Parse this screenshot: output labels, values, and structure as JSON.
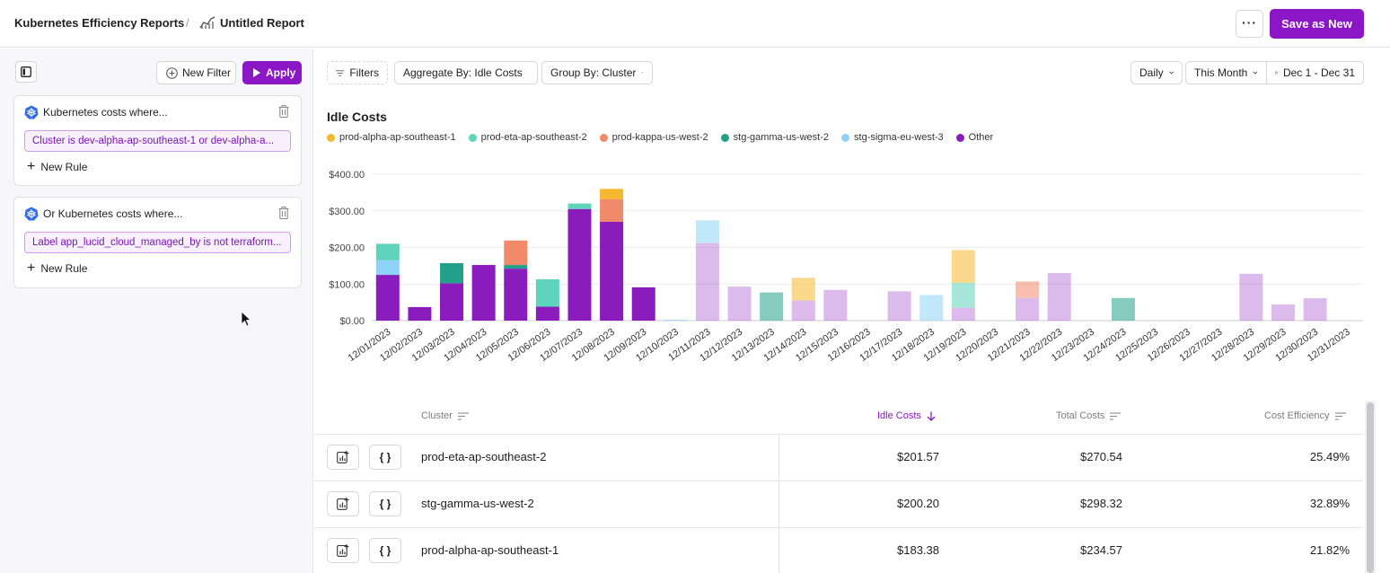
{
  "header": {
    "breadcrumb_root": "Kubernetes Efficiency Reports",
    "separator": "/",
    "report_title": "Untitled Report",
    "more_label": "···",
    "save_label": "Save as New"
  },
  "left_panel": {
    "new_filter_label": "New Filter",
    "apply_label": "Apply",
    "filter_groups": [
      {
        "title": "Kubernetes costs where...",
        "rule": "Cluster is dev-alpha-ap-southeast-1 or dev-alpha-a...",
        "new_rule_label": "New Rule"
      },
      {
        "title": "Or Kubernetes costs where...",
        "rule": "Label app_lucid_cloud_managed_by is not terraform...",
        "new_rule_label": "New Rule"
      }
    ]
  },
  "toolbar": {
    "filters_label": "Filters",
    "aggregate_label": "Aggregate By: Idle Costs",
    "group_label": "Group By: Cluster",
    "granularity_label": "Daily",
    "range_label": "This Month",
    "date_label": "Dec 1 - Dec 31"
  },
  "colors": {
    "accent": "#8a16c6",
    "prod-alpha-ap-southeast-1": "#f5b82e",
    "prod-eta-ap-southeast-2": "#5fd3bc",
    "prod-kappa-us-west-2": "#f18a6b",
    "stg-gamma-us-west-2": "#23a08a",
    "stg-sigma-eu-west-3": "#8ed3f7",
    "Other": "#8a1bbd"
  },
  "chart_data": {
    "type": "bar",
    "stacked": true,
    "title": "Idle Costs",
    "xlabel": "",
    "ylabel": "",
    "ylim": [
      0,
      400
    ],
    "yticks": [
      "$0.00",
      "$100.00",
      "$200.00",
      "$300.00",
      "$400.00"
    ],
    "grid": true,
    "legend_position": "top-left",
    "categories": [
      "12/01/2023",
      "12/02/2023",
      "12/03/2023",
      "12/04/2023",
      "12/05/2023",
      "12/06/2023",
      "12/07/2023",
      "12/08/2023",
      "12/09/2023",
      "12/10/2023",
      "12/11/2023",
      "12/12/2023",
      "12/13/2023",
      "12/14/2023",
      "12/15/2023",
      "12/16/2023",
      "12/17/2023",
      "12/18/2023",
      "12/19/2023",
      "12/20/2023",
      "12/21/2023",
      "12/22/2023",
      "12/23/2023",
      "12/24/2023",
      "12/25/2023",
      "12/26/2023",
      "12/27/2023",
      "12/28/2023",
      "12/29/2023",
      "12/30/2023",
      "12/31/2023"
    ],
    "dimmed_from_index": 10,
    "series": [
      {
        "name": "Other",
        "color": "#8a1bbd",
        "values": [
          125,
          37,
          102,
          152,
          142,
          38,
          305,
          270,
          91,
          0,
          212,
          93,
          0,
          55,
          84,
          0,
          80,
          0,
          35,
          0,
          62,
          130,
          0,
          0,
          0,
          0,
          0,
          128,
          44,
          61,
          0
        ]
      },
      {
        "name": "stg-gamma-us-west-2",
        "color": "#23a08a",
        "values": [
          0,
          0,
          55,
          0,
          10,
          0,
          0,
          0,
          0,
          0,
          0,
          0,
          77,
          0,
          0,
          0,
          0,
          0,
          0,
          0,
          0,
          0,
          0,
          62,
          0,
          0,
          0,
          0,
          0,
          0,
          0
        ]
      },
      {
        "name": "stg-sigma-eu-west-3",
        "color": "#8ed3f7",
        "values": [
          40,
          0,
          0,
          0,
          0,
          0,
          0,
          0,
          0,
          2,
          62,
          0,
          0,
          0,
          0,
          0,
          0,
          70,
          0,
          0,
          0,
          0,
          0,
          0,
          0,
          0,
          0,
          0,
          0,
          0,
          0
        ]
      },
      {
        "name": "prod-kappa-us-west-2",
        "color": "#f18a6b",
        "values": [
          0,
          0,
          0,
          0,
          67,
          0,
          0,
          62,
          0,
          0,
          0,
          0,
          0,
          0,
          0,
          0,
          0,
          0,
          0,
          0,
          45,
          0,
          0,
          0,
          0,
          0,
          0,
          0,
          0,
          0,
          0
        ]
      },
      {
        "name": "prod-eta-ap-southeast-2",
        "color": "#5fd3bc",
        "values": [
          45,
          0,
          0,
          0,
          0,
          75,
          15,
          0,
          0,
          0,
          0,
          0,
          0,
          0,
          0,
          0,
          0,
          0,
          68,
          0,
          0,
          0,
          0,
          0,
          0,
          0,
          0,
          0,
          0,
          0,
          0
        ]
      },
      {
        "name": "prod-alpha-ap-southeast-1",
        "color": "#f5b82e",
        "values": [
          0,
          0,
          0,
          0,
          0,
          0,
          0,
          28,
          0,
          0,
          0,
          0,
          0,
          62,
          0,
          0,
          0,
          0,
          90,
          0,
          0,
          0,
          0,
          0,
          0,
          0,
          0,
          0,
          0,
          0,
          0
        ]
      }
    ],
    "legend_order": [
      "prod-alpha-ap-southeast-1",
      "prod-eta-ap-southeast-2",
      "prod-kappa-us-west-2",
      "stg-gamma-us-west-2",
      "stg-sigma-eu-west-3",
      "Other"
    ]
  },
  "table": {
    "columns": [
      "Cluster",
      "Idle Costs",
      "Total Costs",
      "Cost Efficiency"
    ],
    "sorted_column": "Idle Costs",
    "sort_direction": "desc",
    "rows": [
      {
        "cluster": "prod-eta-ap-southeast-2",
        "idle": "$201.57",
        "total": "$270.54",
        "efficiency": "25.49%"
      },
      {
        "cluster": "stg-gamma-us-west-2",
        "idle": "$200.20",
        "total": "$298.32",
        "efficiency": "32.89%"
      },
      {
        "cluster": "prod-alpha-ap-southeast-1",
        "idle": "$183.38",
        "total": "$234.57",
        "efficiency": "21.82%"
      }
    ],
    "row_button_icons": [
      "chart-add-icon",
      "braces-icon"
    ],
    "braces_glyph": "{ }"
  }
}
